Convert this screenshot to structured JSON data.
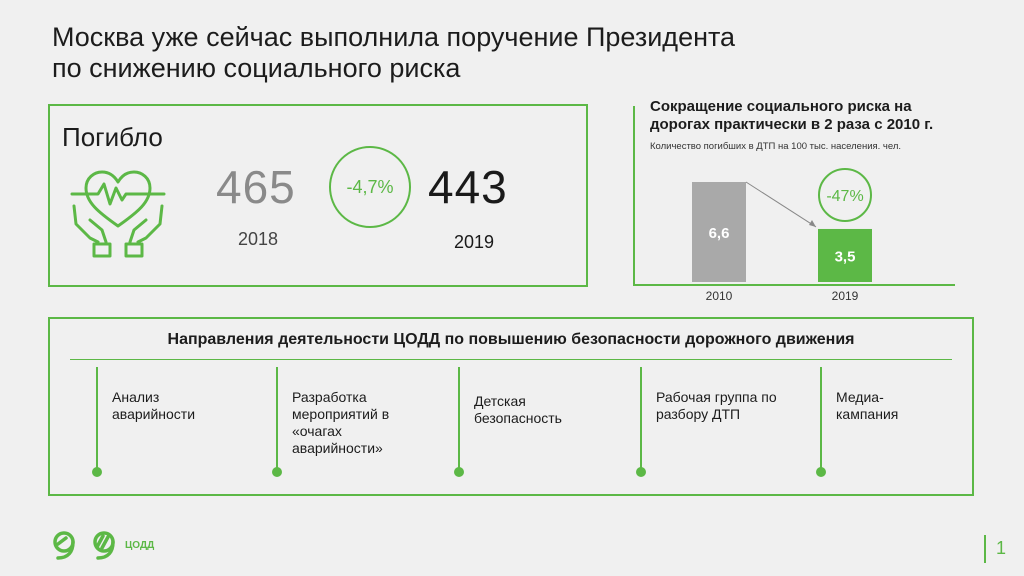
{
  "title": {
    "line1": "Москва уже сейчас выполнила поручение Президента",
    "line2": "по снижению социального риска"
  },
  "deaths": {
    "label": "Погибло",
    "value_2018": "465",
    "year_2018": "2018",
    "change": "-4,7%",
    "value_2019": "443",
    "year_2019": "2019"
  },
  "chart_data": {
    "type": "bar",
    "title_line1": "Сокращение социального риска на",
    "title_line2": "дорогах практически в 2 раза с 2010 г.",
    "subtitle": "Количество погибших в ДТП на 100 тыс. населения. чел.",
    "categories": [
      "2010",
      "2019"
    ],
    "values": [
      6.6,
      3.5
    ],
    "value_labels": [
      "6,6",
      "3,5"
    ],
    "colors": [
      "#a9a9a9",
      "#5cb846"
    ],
    "change_label": "-47%",
    "ylim": [
      0,
      6.6
    ]
  },
  "directions": {
    "title": "Направления деятельности ЦОДД по повышению безопасности дорожного движения",
    "items": [
      {
        "label": "Анализ аварийности"
      },
      {
        "label": "Разработка мероприятий в «очагах аварийности»"
      },
      {
        "label": "Детская безопасность"
      },
      {
        "label": "Рабочая группа по разбору ДТП"
      },
      {
        "label": "Медиа-кампания"
      }
    ]
  },
  "footer": {
    "logo_text": "ЦОДД",
    "page_number": "1"
  },
  "colors": {
    "accent": "#5cb846",
    "gray_bar": "#a9a9a9",
    "background": "#f0f0f0"
  }
}
